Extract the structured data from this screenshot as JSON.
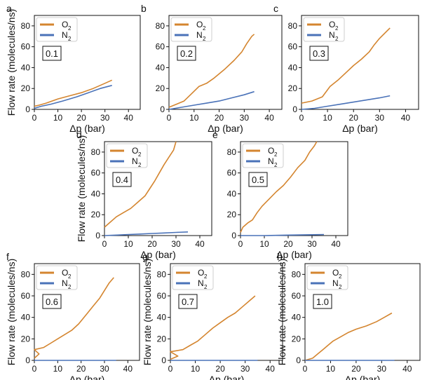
{
  "colors": {
    "O2": "#d4852f",
    "N2": "#4a72b8"
  },
  "chart_data": [
    {
      "type": "line",
      "panel": "a",
      "fraction": "0.1",
      "xlabel": "Δp (bar)",
      "ylabel": "Flow rate (molecules/ns)",
      "xlim": [
        0,
        45
      ],
      "ylim": [
        0,
        90
      ],
      "xticks": [
        0,
        10,
        20,
        30,
        40
      ],
      "yticks": [
        0,
        20,
        40,
        60,
        80
      ],
      "legend": "top-left",
      "series": [
        {
          "name": "O",
          "sub": "2",
          "color_key": "O2",
          "points": [
            [
              0,
              3
            ],
            [
              2,
              4
            ],
            [
              5,
              6
            ],
            [
              10,
              10
            ],
            [
              15,
              13
            ],
            [
              20,
              16
            ],
            [
              25,
              20
            ],
            [
              30,
              25
            ],
            [
              33,
              28
            ]
          ]
        },
        {
          "name": "N",
          "sub": "2",
          "color_key": "N2",
          "points": [
            [
              0,
              1
            ],
            [
              3,
              3
            ],
            [
              7,
              5
            ],
            [
              12,
              8
            ],
            [
              18,
              12
            ],
            [
              23,
              16
            ],
            [
              28,
              20
            ],
            [
              33,
              23
            ]
          ]
        }
      ]
    },
    {
      "type": "line",
      "panel": "b",
      "fraction": "0.2",
      "xlabel": "Δp (bar)",
      "ylabel": "",
      "xlim": [
        0,
        45
      ],
      "ylim": [
        0,
        90
      ],
      "xticks": [
        0,
        10,
        20,
        30,
        40
      ],
      "yticks": [
        0,
        20,
        40,
        60,
        80
      ],
      "legend": "top-left",
      "series": [
        {
          "name": "O",
          "sub": "2",
          "color_key": "O2",
          "points": [
            [
              0,
              2
            ],
            [
              3,
              5
            ],
            [
              6,
              8
            ],
            [
              9,
              15
            ],
            [
              12,
              22
            ],
            [
              15,
              25
            ],
            [
              18,
              30
            ],
            [
              22,
              38
            ],
            [
              26,
              47
            ],
            [
              29,
              55
            ],
            [
              31,
              63
            ],
            [
              33,
              70
            ],
            [
              34,
              72
            ]
          ]
        },
        {
          "name": "N",
          "sub": "2",
          "color_key": "N2",
          "points": [
            [
              0,
              0
            ],
            [
              5,
              2
            ],
            [
              10,
              4
            ],
            [
              15,
              6
            ],
            [
              20,
              8
            ],
            [
              25,
              11
            ],
            [
              30,
              14
            ],
            [
              34,
              17
            ]
          ]
        }
      ]
    },
    {
      "type": "line",
      "panel": "c",
      "fraction": "0.3",
      "xlabel": "Δp (bar)",
      "ylabel": "",
      "xlim": [
        0,
        45
      ],
      "ylim": [
        0,
        90
      ],
      "xticks": [
        0,
        10,
        20,
        30,
        40
      ],
      "yticks": [
        0,
        20,
        40,
        60,
        80
      ],
      "legend": "top-left",
      "series": [
        {
          "name": "O",
          "sub": "2",
          "color_key": "O2",
          "points": [
            [
              0,
              6
            ],
            [
              4,
              8
            ],
            [
              8,
              12
            ],
            [
              11,
              22
            ],
            [
              14,
              28
            ],
            [
              17,
              35
            ],
            [
              20,
              42
            ],
            [
              23,
              48
            ],
            [
              26,
              55
            ],
            [
              28,
              62
            ],
            [
              30,
              68
            ],
            [
              32,
              73
            ],
            [
              34,
              78
            ]
          ]
        },
        {
          "name": "N",
          "sub": "2",
          "color_key": "N2",
          "points": [
            [
              0,
              0
            ],
            [
              5,
              1
            ],
            [
              10,
              3
            ],
            [
              15,
              5
            ],
            [
              20,
              7
            ],
            [
              25,
              9
            ],
            [
              30,
              11
            ],
            [
              34,
              13
            ]
          ]
        }
      ]
    },
    {
      "type": "line",
      "panel": "d",
      "fraction": "0.4",
      "xlabel": "Δp (bar)",
      "ylabel": "Flow rate (molecules/ns)",
      "xlim": [
        0,
        45
      ],
      "ylim": [
        0,
        90
      ],
      "xticks": [
        0,
        10,
        20,
        30,
        40
      ],
      "yticks": [
        0,
        20,
        40,
        60,
        80
      ],
      "legend": "top-left",
      "series": [
        {
          "name": "O",
          "sub": "2",
          "color_key": "O2",
          "points": [
            [
              0,
              8
            ],
            [
              2,
              12
            ],
            [
              5,
              18
            ],
            [
              8,
              22
            ],
            [
              11,
              26
            ],
            [
              14,
              32
            ],
            [
              17,
              38
            ],
            [
              19,
              45
            ],
            [
              21,
              52
            ],
            [
              23,
              60
            ],
            [
              25,
              68
            ],
            [
              27,
              75
            ],
            [
              29,
              82
            ],
            [
              30,
              90
            ]
          ]
        },
        {
          "name": "N",
          "sub": "2",
          "color_key": "N2",
          "points": [
            [
              0,
              0
            ],
            [
              5,
              0.5
            ],
            [
              10,
              1
            ],
            [
              15,
              1.5
            ],
            [
              20,
              2
            ],
            [
              25,
              2.5
            ],
            [
              30,
              3
            ],
            [
              35,
              3.5
            ]
          ]
        }
      ]
    },
    {
      "type": "line",
      "panel": "e",
      "fraction": "0.5",
      "xlabel": "Δp (bar)",
      "ylabel": "",
      "xlim": [
        0,
        45
      ],
      "ylim": [
        0,
        90
      ],
      "xticks": [
        0,
        10,
        20,
        30,
        40
      ],
      "yticks": [
        0,
        20,
        40,
        60,
        80
      ],
      "legend": "top-left",
      "series": [
        {
          "name": "O",
          "sub": "2",
          "color_key": "O2",
          "points": [
            [
              0,
              3
            ],
            [
              1,
              8
            ],
            [
              3,
              12
            ],
            [
              5,
              15
            ],
            [
              7,
              22
            ],
            [
              9,
              28
            ],
            [
              12,
              35
            ],
            [
              15,
              42
            ],
            [
              18,
              48
            ],
            [
              21,
              56
            ],
            [
              24,
              65
            ],
            [
              27,
              72
            ],
            [
              29,
              80
            ],
            [
              31,
              86
            ],
            [
              32,
              90
            ]
          ]
        },
        {
          "name": "N",
          "sub": "2",
          "color_key": "N2",
          "points": [
            [
              0,
              0
            ],
            [
              10,
              0
            ],
            [
              20,
              0.5
            ],
            [
              30,
              0.8
            ],
            [
              35,
              1
            ]
          ]
        }
      ]
    },
    {
      "type": "line",
      "panel": "f",
      "fraction": "0.6",
      "xlabel": "Δp (bar)",
      "ylabel": "Flow rate (molecules/ns)",
      "xlim": [
        0,
        45
      ],
      "ylim": [
        0,
        90
      ],
      "xticks": [
        0,
        10,
        20,
        30,
        40
      ],
      "yticks": [
        0,
        20,
        40,
        60,
        80
      ],
      "legend": "top-left",
      "series": [
        {
          "name": "O",
          "sub": "2",
          "color_key": "O2",
          "points": [
            [
              0,
              2
            ],
            [
              2,
              6
            ],
            [
              0,
              10
            ],
            [
              4,
              12
            ],
            [
              7,
              16
            ],
            [
              10,
              20
            ],
            [
              13,
              24
            ],
            [
              16,
              28
            ],
            [
              19,
              34
            ],
            [
              22,
              42
            ],
            [
              25,
              50
            ],
            [
              28,
              58
            ],
            [
              30,
              65
            ],
            [
              32,
              72
            ],
            [
              34,
              77
            ]
          ]
        },
        {
          "name": "N",
          "sub": "2",
          "color_key": "N2",
          "points": [
            [
              0,
              0
            ],
            [
              10,
              0
            ],
            [
              20,
              0
            ],
            [
              30,
              0
            ],
            [
              35,
              0
            ]
          ]
        }
      ]
    },
    {
      "type": "line",
      "panel": "g",
      "fraction": "0.7",
      "xlabel": "Δp (bar)",
      "ylabel": "Flow rate (molecules/ns)",
      "xlim": [
        0,
        45
      ],
      "ylim": [
        0,
        90
      ],
      "xticks": [
        0,
        10,
        20,
        30,
        40
      ],
      "yticks": [
        0,
        20,
        40,
        60,
        80
      ],
      "legend": "top-left",
      "series": [
        {
          "name": "O",
          "sub": "2",
          "color_key": "O2",
          "points": [
            [
              0,
              1
            ],
            [
              3,
              4
            ],
            [
              0,
              8
            ],
            [
              5,
              10
            ],
            [
              8,
              14
            ],
            [
              11,
              18
            ],
            [
              14,
              24
            ],
            [
              17,
              30
            ],
            [
              20,
              35
            ],
            [
              23,
              40
            ],
            [
              26,
              44
            ],
            [
              29,
              50
            ],
            [
              32,
              56
            ],
            [
              34,
              60
            ]
          ]
        },
        {
          "name": "N",
          "sub": "2",
          "color_key": "N2",
          "points": [
            [
              0,
              0
            ],
            [
              10,
              0
            ],
            [
              20,
              0
            ],
            [
              30,
              0
            ],
            [
              35,
              0
            ]
          ]
        }
      ]
    },
    {
      "type": "line",
      "panel": "h",
      "fraction": "1.0",
      "xlabel": "Δp (bar)",
      "ylabel": "Flow rate (molecules/ns)",
      "xlim": [
        0,
        45
      ],
      "ylim": [
        0,
        90
      ],
      "xticks": [
        0,
        10,
        20,
        30,
        40
      ],
      "yticks": [
        0,
        20,
        40,
        60,
        80
      ],
      "legend": "top-left",
      "series": [
        {
          "name": "O",
          "sub": "2",
          "color_key": "O2",
          "points": [
            [
              0,
              0
            ],
            [
              3,
              2
            ],
            [
              5,
              6
            ],
            [
              7,
              10
            ],
            [
              9,
              14
            ],
            [
              11,
              18
            ],
            [
              14,
              22
            ],
            [
              17,
              26
            ],
            [
              20,
              29
            ],
            [
              24,
              32
            ],
            [
              28,
              36
            ],
            [
              31,
              40
            ],
            [
              34,
              44
            ]
          ]
        },
        {
          "name": "N",
          "sub": "2",
          "color_key": "N2",
          "points": [
            [
              0,
              0
            ],
            [
              10,
              0
            ],
            [
              20,
              0
            ],
            [
              30,
              0
            ],
            [
              35,
              0
            ]
          ]
        }
      ]
    }
  ]
}
